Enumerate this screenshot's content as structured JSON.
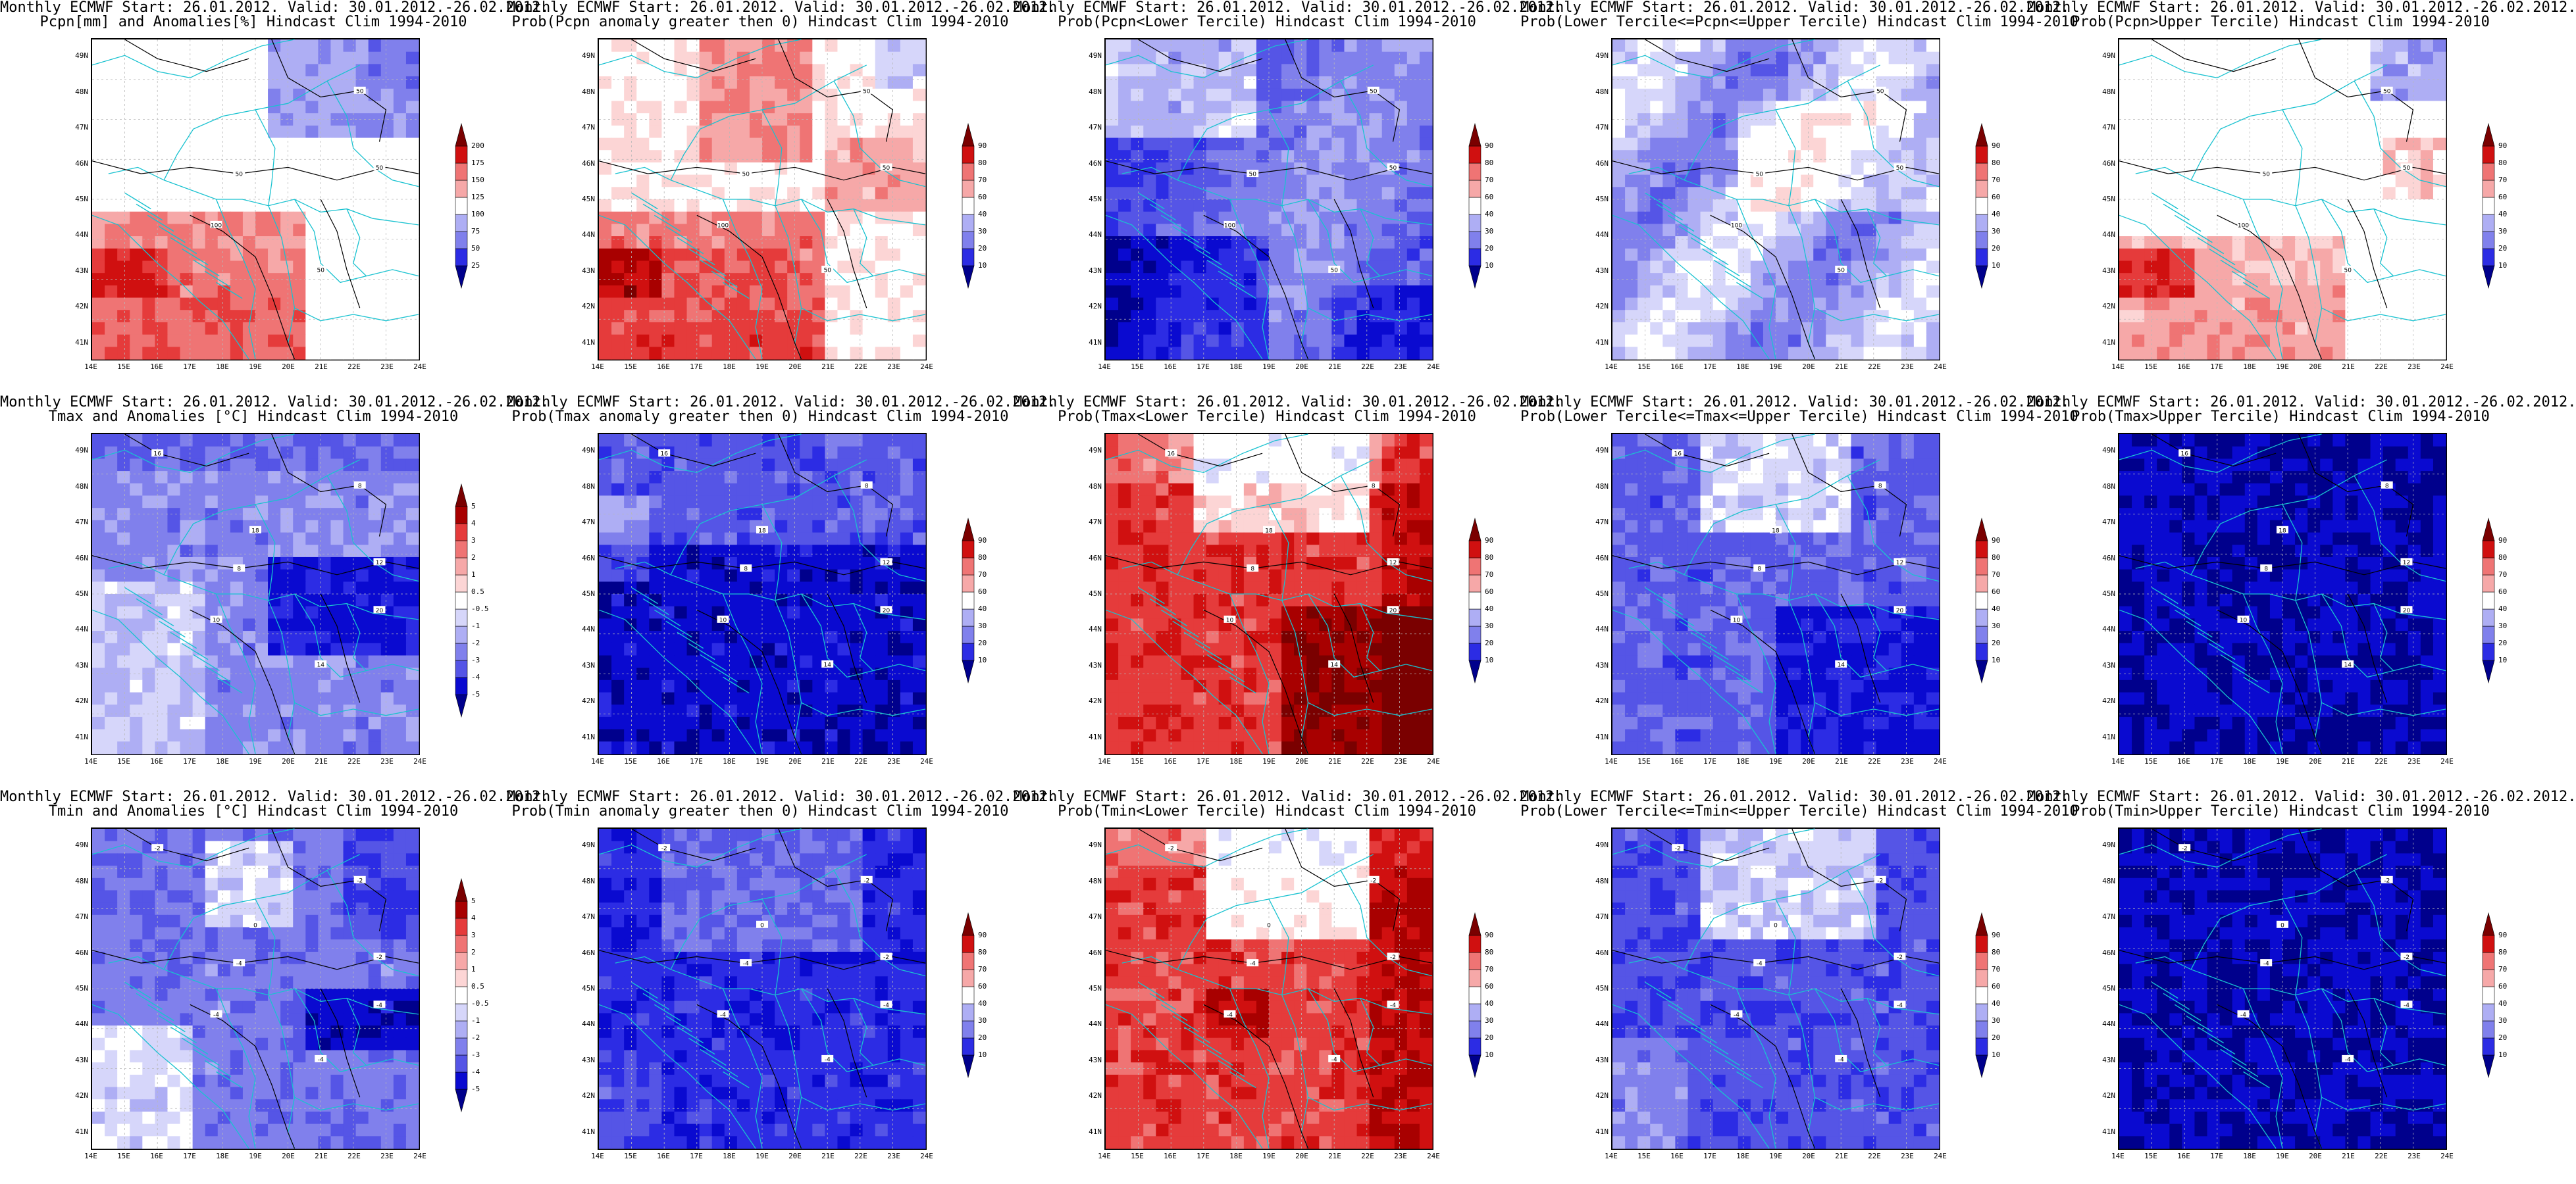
{
  "panels": [
    {
      "id": "pcpn-anom",
      "title_line1": "Monthly ECMWF Start: 26.01.2012. Valid: 30.01.2012.-26.02.2012.",
      "title_line2": "Pcpn[mm] and Anomalies[%] Hindcast Clim 1994-2010",
      "colorbar_levels": [
        "25",
        "50",
        "75",
        "100",
        "125",
        "150",
        "175",
        "200"
      ],
      "contour_labels": [
        "50",
        "50",
        "100",
        "50",
        "50"
      ],
      "palette": "bwr",
      "field": "pcpn_anom"
    },
    {
      "id": "pcpn-prob-gt0",
      "title_line1": "Monthly ECMWF Start: 26.01.2012. Valid: 30.01.2012.-26.02.2012.",
      "title_line2": "Prob(Pcpn anomaly greater then 0) Hindcast Clim 1994-2010",
      "colorbar_levels": [
        "10",
        "20",
        "30",
        "40",
        "60",
        "70",
        "80",
        "90"
      ],
      "contour_labels": [
        "50",
        "50",
        "100",
        "50",
        "50"
      ],
      "palette": "bwr",
      "field": "pcpn_prob"
    },
    {
      "id": "pcpn-lower",
      "title_line1": "Monthly ECMWF Start: 26.01.2012. Valid: 30.01.2012.-26.02.2012.",
      "title_line2": "Prob(Pcpn<Lower Tercile) Hindcast Clim 1994-2010",
      "colorbar_levels": [
        "10",
        "20",
        "30",
        "40",
        "60",
        "70",
        "80",
        "90"
      ],
      "contour_labels": [
        "50",
        "50",
        "100",
        "50",
        "50"
      ],
      "palette": "bwr",
      "field": "pcpn_lower"
    },
    {
      "id": "pcpn-middle",
      "title_line1": "Monthly ECMWF Start: 26.01.2012. Valid: 30.01.2012.-26.02.2012.",
      "title_line2": "Prob(Lower Tercile<=Pcpn<=Upper Tercile) Hindcast Clim 1994-2010",
      "colorbar_levels": [
        "10",
        "20",
        "30",
        "40",
        "60",
        "70",
        "80",
        "90"
      ],
      "contour_labels": [
        "50",
        "50",
        "100",
        "50",
        "50"
      ],
      "palette": "bwr",
      "field": "pcpn_middle"
    },
    {
      "id": "pcpn-upper",
      "title_line1": "Monthly ECMWF Start: 26.01.2012. Valid: 30.01.2012.-26.02.2012.",
      "title_line2": "Prob(Pcpn>Upper Tercile) Hindcast Clim 1994-2010",
      "colorbar_levels": [
        "10",
        "20",
        "30",
        "40",
        "60",
        "70",
        "80",
        "90"
      ],
      "contour_labels": [
        "50",
        "50",
        "100",
        "50",
        "50"
      ],
      "palette": "bwr",
      "field": "pcpn_upper"
    },
    {
      "id": "tmax-anom",
      "title_line1": "Monthly ECMWF Start: 26.01.2012. Valid: 30.01.2012.-26.02.2012.",
      "title_line2": "Tmax and Anomalies [°C] Hindcast Clim 1994-2010",
      "colorbar_levels": [
        "-5",
        "-4",
        "-3",
        "-2",
        "-1",
        "-0.5",
        "0.5",
        "1",
        "2",
        "3",
        "4",
        "5"
      ],
      "contour_labels": [
        "8",
        "8",
        "10",
        "12",
        "14",
        "16",
        "18",
        "20"
      ],
      "palette": "bwr",
      "field": "tmax_anom"
    },
    {
      "id": "tmax-prob-gt0",
      "title_line1": "Monthly ECMWF Start: 26.01.2012. Valid: 30.01.2012.-26.02.2012.",
      "title_line2": "Prob(Tmax anomaly greater then 0) Hindcast Clim 1994-2010",
      "colorbar_levels": [
        "10",
        "20",
        "30",
        "40",
        "60",
        "70",
        "80",
        "90"
      ],
      "contour_labels": [
        "8",
        "8",
        "10",
        "12",
        "14",
        "16",
        "18",
        "20"
      ],
      "palette": "bwr",
      "field": "tmax_prob"
    },
    {
      "id": "tmax-lower",
      "title_line1": "Monthly ECMWF Start: 26.01.2012. Valid: 30.01.2012.-26.02.2012.",
      "title_line2": "Prob(Tmax<Lower Tercile) Hindcast Clim 1994-2010",
      "colorbar_levels": [
        "10",
        "20",
        "30",
        "40",
        "60",
        "70",
        "80",
        "90"
      ],
      "contour_labels": [
        "8",
        "8",
        "10",
        "12",
        "14",
        "16",
        "18",
        "20"
      ],
      "palette": "bwr",
      "field": "tmax_lower"
    },
    {
      "id": "tmax-middle",
      "title_line1": "Monthly ECMWF Start: 26.01.2012. Valid: 30.01.2012.-26.02.2012.",
      "title_line2": "Prob(Lower Tercile<=Tmax<=Upper Tercile) Hindcast Clim 1994-2010",
      "colorbar_levels": [
        "10",
        "20",
        "30",
        "40",
        "60",
        "70",
        "80",
        "90"
      ],
      "contour_labels": [
        "8",
        "8",
        "10",
        "12",
        "14",
        "16",
        "18",
        "20"
      ],
      "palette": "bwr",
      "field": "tmax_middle"
    },
    {
      "id": "tmax-upper",
      "title_line1": "Monthly ECMWF Start: 26.01.2012. Valid: 30.01.2012.-26.02.2012.",
      "title_line2": "Prob(Tmax>Upper Tercile) Hindcast Clim 1994-2010",
      "colorbar_levels": [
        "10",
        "20",
        "30",
        "40",
        "60",
        "70",
        "80",
        "90"
      ],
      "contour_labels": [
        "8",
        "8",
        "10",
        "12",
        "14",
        "16",
        "18",
        "20"
      ],
      "palette": "bwr",
      "field": "tmax_upper"
    },
    {
      "id": "tmin-anom",
      "title_line1": "Monthly ECMWF Start: 26.01.2012. Valid: 30.01.2012.-26.02.2012.",
      "title_line2": "Tmin and Anomalies [°C] Hindcast Clim 1994-2010",
      "colorbar_levels": [
        "-5",
        "-4",
        "-3",
        "-2",
        "-1",
        "-0.5",
        "0.5",
        "1",
        "2",
        "3",
        "4",
        "5"
      ],
      "contour_labels": [
        "-4",
        "-2",
        "-4",
        "-2",
        "-4",
        "-2",
        "0",
        "-4"
      ],
      "palette": "bwr",
      "field": "tmin_anom"
    },
    {
      "id": "tmin-prob-gt0",
      "title_line1": "Monthly ECMWF Start: 26.01.2012. Valid: 30.01.2012.-26.02.2012.",
      "title_line2": "Prob(Tmin anomaly greater then 0) Hindcast Clim 1994-2010",
      "colorbar_levels": [
        "10",
        "20",
        "30",
        "40",
        "60",
        "70",
        "80",
        "90"
      ],
      "contour_labels": [
        "-4",
        "-2",
        "-4",
        "-2",
        "-4",
        "-2",
        "0",
        "-4"
      ],
      "palette": "bwr",
      "field": "tmin_prob"
    },
    {
      "id": "tmin-lower",
      "title_line1": "Monthly ECMWF Start: 26.01.2012. Valid: 30.01.2012.-26.02.2012.",
      "title_line2": "Prob(Tmin<Lower Tercile) Hindcast Clim 1994-2010",
      "colorbar_levels": [
        "10",
        "20",
        "30",
        "40",
        "60",
        "70",
        "80",
        "90"
      ],
      "contour_labels": [
        "-4",
        "-2",
        "-4",
        "-2",
        "-4",
        "-2",
        "0",
        "-4"
      ],
      "palette": "bwr",
      "field": "tmin_lower"
    },
    {
      "id": "tmin-middle",
      "title_line1": "Monthly ECMWF Start: 26.01.2012. Valid: 30.01.2012.-26.02.2012.",
      "title_line2": "Prob(Lower Tercile<=Tmin<=Upper Tercile) Hindcast Clim 1994-2010",
      "colorbar_levels": [
        "10",
        "20",
        "30",
        "40",
        "60",
        "70",
        "80",
        "90"
      ],
      "contour_labels": [
        "-4",
        "-2",
        "-4",
        "-2",
        "-4",
        "-2",
        "0",
        "-4"
      ],
      "palette": "bwr",
      "field": "tmin_middle"
    },
    {
      "id": "tmin-upper",
      "title_line1": "Monthly ECMWF Start: 26.01.2012. Valid: 30.01.2012.-26.02.2012.",
      "title_line2": "Prob(Tmin>Upper Tercile) Hindcast Clim 1994-2010",
      "colorbar_levels": [
        "10",
        "20",
        "30",
        "40",
        "60",
        "70",
        "80",
        "90"
      ],
      "contour_labels": [
        "-4",
        "-2",
        "-4",
        "-2",
        "-4",
        "-2",
        "0",
        "-4"
      ],
      "palette": "bwr",
      "field": "tmin_upper"
    }
  ],
  "lat_ticks": [
    "41N",
    "42N",
    "43N",
    "44N",
    "45N",
    "46N",
    "47N",
    "48N",
    "49N"
  ],
  "lon_ticks": [
    "14E",
    "15E",
    "16E",
    "17E",
    "18E",
    "19E",
    "20E",
    "21E",
    "22E",
    "23E",
    "24E"
  ],
  "colors": {
    "red_palette": [
      "#ffffff",
      "#fcd5d5",
      "#f6a8a8",
      "#ef7474",
      "#e53b3b",
      "#d01010",
      "#a80000",
      "#7a0000"
    ],
    "blue_palette": [
      "#ffffff",
      "#d6d6fa",
      "#aeaef4",
      "#8080ec",
      "#5555e6",
      "#2c2ce4",
      "#0a0ad0",
      "#00008c"
    ],
    "border_line": "#19c2d0",
    "contour_line": "#000000",
    "grid_line": "#b8b8b8"
  }
}
